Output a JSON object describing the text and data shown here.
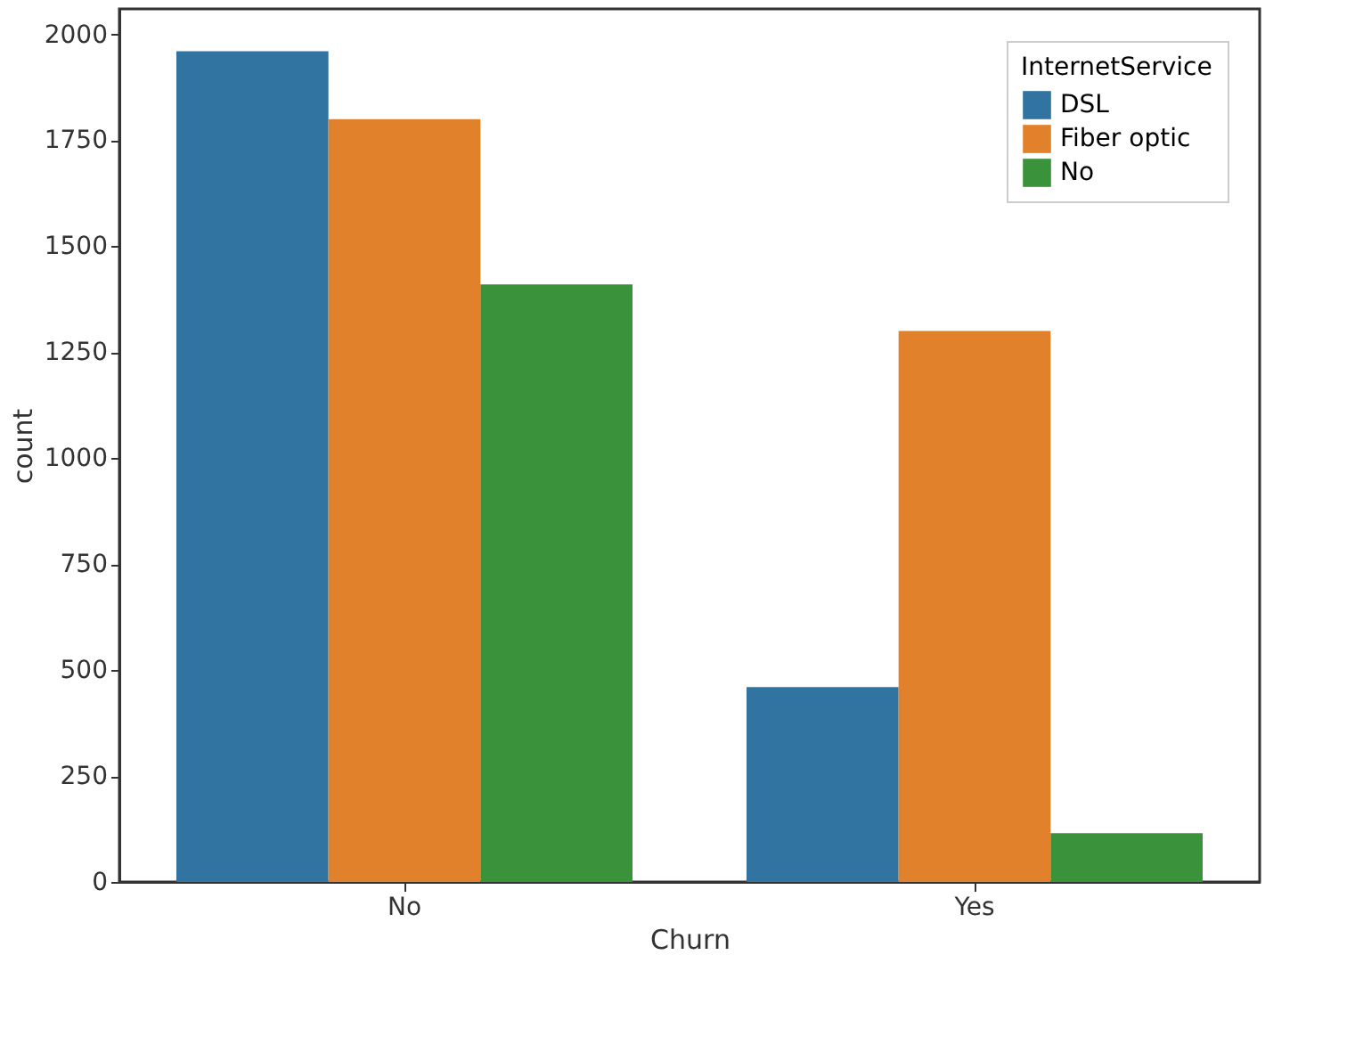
{
  "chart_data": {
    "type": "bar",
    "xlabel": "Churn",
    "ylabel": "count",
    "legend_title": "InternetService",
    "categories": [
      "No",
      "Yes"
    ],
    "series": [
      {
        "name": "DSL",
        "color": "#3274a1",
        "values": [
          1960,
          460
        ]
      },
      {
        "name": "Fiber optic",
        "color": "#e1812c",
        "values": [
          1800,
          1300
        ]
      },
      {
        "name": "No",
        "color": "#3a923a",
        "values": [
          1410,
          115
        ]
      }
    ],
    "ylim": [
      0,
      2060
    ],
    "yticks": [
      0,
      250,
      500,
      750,
      1000,
      1250,
      1500,
      1750,
      2000
    ],
    "grid": false,
    "legend": "top right"
  }
}
